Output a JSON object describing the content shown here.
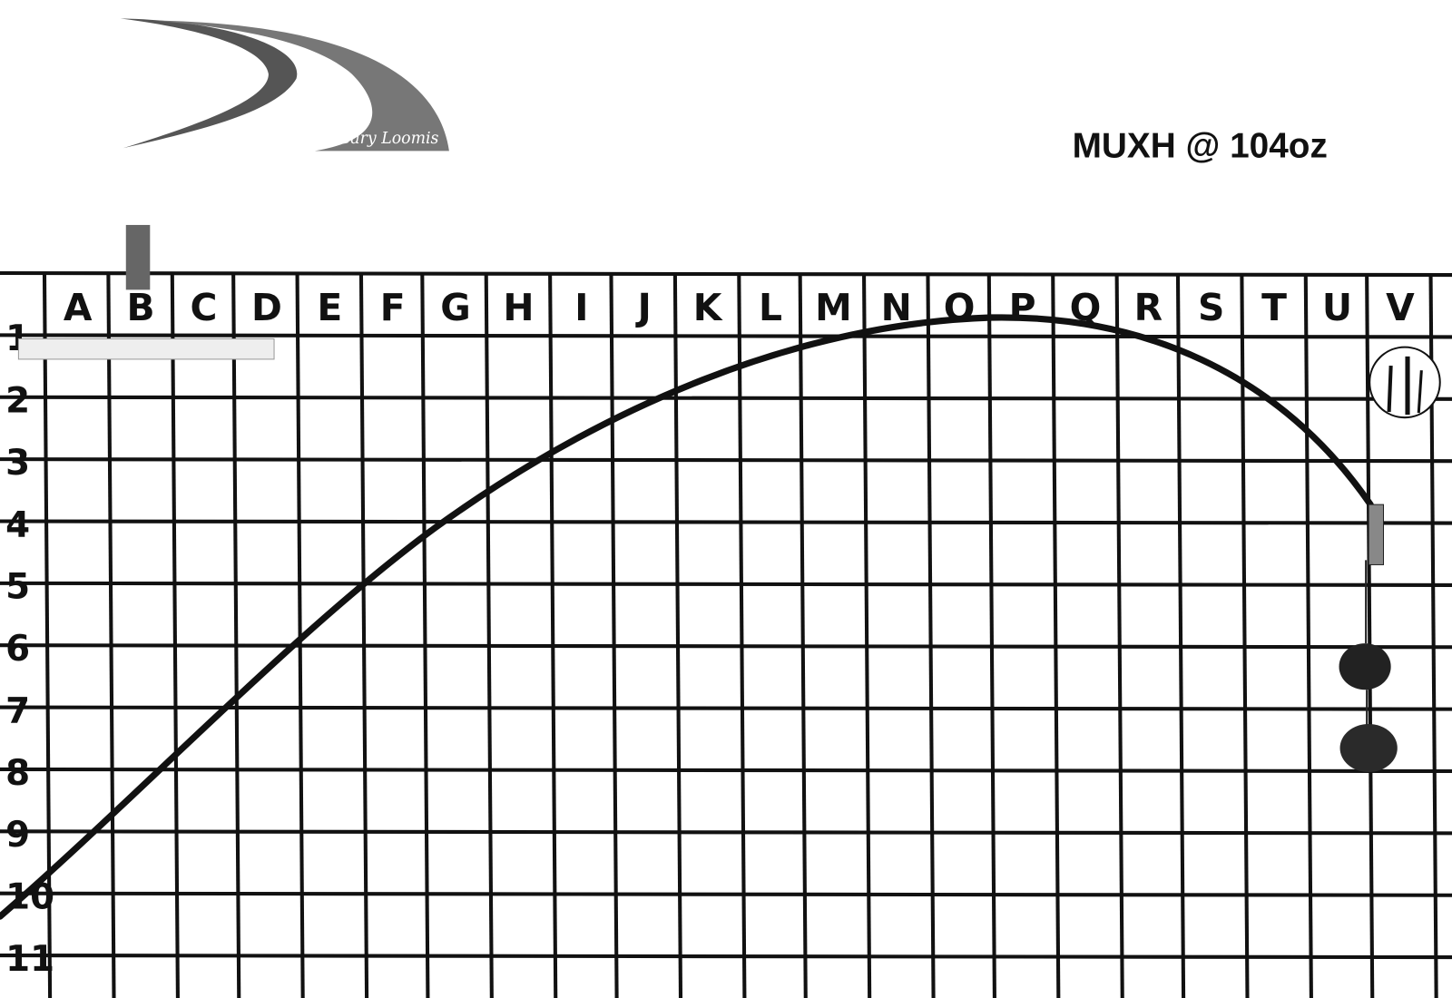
{
  "header": {
    "title": "MUXH @ 104oz",
    "signature": "Gary Loomis"
  },
  "board": {
    "columns": [
      "A",
      "B",
      "C",
      "D",
      "E",
      "F",
      "G",
      "H",
      "I",
      "J",
      "K",
      "L",
      "M",
      "N",
      "O",
      "P",
      "Q",
      "R",
      "S",
      "T",
      "U",
      "V"
    ],
    "rows": [
      "1",
      "2",
      "3",
      "4",
      "5",
      "6",
      "7",
      "8",
      "9",
      "10",
      "11"
    ]
  }
}
